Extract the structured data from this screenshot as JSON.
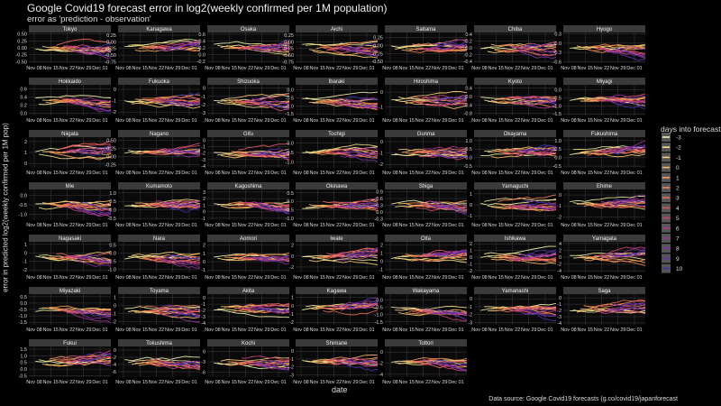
{
  "title": "Google Covid19 forecast error in log2(weekly confirmed per 1M population)",
  "subtitle": "error as 'prediction - observation'",
  "xlabel": "date",
  "ylabel": "error in predicted log2(weekly confirmed per 1M pop)",
  "source": "Data source: Google Covid19 forecasts (g.co/covid19/japanforecast",
  "x_tick_labels": [
    "Nov 08",
    "Nov 15",
    "Nov 22",
    "Nov 29",
    "Dec 01"
  ],
  "legend": {
    "title": "days into forecast",
    "levels": [
      "-3",
      "-2",
      "-1",
      "0",
      "1",
      "2",
      "3",
      "4",
      "5",
      "6",
      "7",
      "8",
      "9",
      "10"
    ],
    "colors": [
      "#f0f0a8",
      "#f6e08a",
      "#f8cc70",
      "#f9b560",
      "#f89c55",
      "#f4834f",
      "#ec6b55",
      "#de5565",
      "#cc4576",
      "#b53a88",
      "#9c3497",
      "#7f31a3",
      "#5f30aa",
      "#3d2fa8"
    ]
  },
  "chart_data": {
    "type": "line",
    "layout": "small-multiples 7 columns",
    "panels": [
      {
        "name": "Tokyo",
        "ticks": [
          "0.50",
          "0.25",
          "0.00",
          "-0.25",
          "-0.50"
        ],
        "ylim": [
          -0.55,
          0.55
        ]
      },
      {
        "name": "Kanagawa",
        "ticks": [
          "0.25",
          "0.00",
          "-0.25",
          "-0.50",
          "-0.75"
        ],
        "ylim": [
          -0.8,
          0.35
        ]
      },
      {
        "name": "Osaka",
        "ticks": [
          "0.6",
          "0.4",
          "0.2",
          "0.0",
          "-0.2"
        ],
        "ylim": [
          -0.25,
          0.65
        ]
      },
      {
        "name": "Aichi",
        "ticks": [
          "0.25",
          "0.00",
          "-0.25",
          "-0.50",
          "-0.75"
        ],
        "ylim": [
          -0.8,
          0.35
        ]
      },
      {
        "name": "Saitama",
        "ticks": [
          "0.25",
          "0.00",
          "-0.25",
          "-0.50"
        ],
        "ylim": [
          -0.55,
          0.4
        ]
      },
      {
        "name": "Chiba",
        "ticks": [
          "0.4",
          "0.2",
          "0.0",
          "-0.2",
          "-0.4"
        ],
        "ylim": [
          -0.45,
          0.45
        ]
      },
      {
        "name": "Hyogo",
        "ticks": [
          "0.3",
          "0.0",
          "-0.3",
          "-0.6"
        ],
        "ylim": [
          -0.65,
          0.35
        ]
      },
      {
        "name": "Hokkaido",
        "ticks": [
          "0.6",
          "0.4",
          "0.2",
          "0.0"
        ],
        "ylim": [
          -0.05,
          0.7
        ]
      },
      {
        "name": "Fukuoka",
        "ticks": [
          "0",
          "-1",
          "-2"
        ],
        "ylim": [
          -2.3,
          0.4
        ]
      },
      {
        "name": "Shizuoka",
        "ticks": [
          "0",
          "-1",
          "-2",
          "-3"
        ],
        "ylim": [
          -3.3,
          0.4
        ]
      },
      {
        "name": "Ibaraki",
        "ticks": [
          "0.0",
          "-0.5",
          "-1.0",
          "-1.5"
        ],
        "ylim": [
          -1.6,
          0.3
        ]
      },
      {
        "name": "Hiroshima",
        "ticks": [
          "0",
          "-1"
        ],
        "ylim": [
          -1.6,
          0.5
        ]
      },
      {
        "name": "Kyoto",
        "ticks": [
          "0.4",
          "0.0",
          "-0.4",
          "-0.8"
        ],
        "ylim": [
          -0.9,
          0.55
        ]
      },
      {
        "name": "Miyagi",
        "ticks": [
          "0.0",
          "-0.5",
          "-1.0",
          "-1.5"
        ],
        "ylim": [
          -1.6,
          0.3
        ]
      },
      {
        "name": "Niigata",
        "ticks": [
          "2",
          "1",
          "0"
        ],
        "ylim": [
          -0.4,
          2.4
        ]
      },
      {
        "name": "Nagano",
        "ticks": [
          "0.50",
          "0.25",
          "0.00",
          "-0.25"
        ],
        "ylim": [
          -0.35,
          0.6
        ]
      },
      {
        "name": "Gifu",
        "ticks": [
          "0",
          "-1",
          "-2",
          "-3",
          "-4"
        ],
        "ylim": [
          -4.3,
          0.5
        ]
      },
      {
        "name": "Tochigi",
        "ticks": [
          "0.0",
          "-0.5",
          "-1.0"
        ],
        "ylim": [
          -1.3,
          0.3
        ]
      },
      {
        "name": "Gunma",
        "ticks": [
          "0",
          "-1",
          "-2"
        ],
        "ylim": [
          -2.3,
          0.4
        ]
      },
      {
        "name": "Okayama",
        "ticks": [
          "1.0",
          "0.5",
          "0.0",
          "-0.5"
        ],
        "ylim": [
          -0.6,
          1.2
        ]
      },
      {
        "name": "Fukushima",
        "ticks": [
          "1.0",
          "0.5",
          "0.0",
          "-0.5"
        ],
        "ylim": [
          -0.6,
          1.2
        ]
      },
      {
        "name": "Mie",
        "ticks": [
          "0.0",
          "-0.5",
          "-1.0"
        ],
        "ylim": [
          -1.3,
          0.3
        ]
      },
      {
        "name": "Kumamoto",
        "ticks": [
          "1.0",
          "0.5",
          "0.0",
          "-0.5"
        ],
        "ylim": [
          -0.6,
          1.2
        ]
      },
      {
        "name": "Kagoshima",
        "ticks": [
          "3",
          "2",
          "1",
          "0",
          "-1"
        ],
        "ylim": [
          -1.3,
          3.4
        ]
      },
      {
        "name": "Okinawa",
        "ticks": [
          "0.5",
          "0.0",
          "-0.5",
          "-1.0"
        ],
        "ylim": [
          -1.1,
          0.7
        ]
      },
      {
        "name": "Shiga",
        "ticks": [
          "0.9",
          "0.6",
          "0.3",
          "0.0",
          "-0.3"
        ],
        "ylim": [
          -0.35,
          1.0
        ]
      },
      {
        "name": "Yamaguchi",
        "ticks": [
          "1",
          "0",
          "-1"
        ],
        "ylim": [
          -1.4,
          1.4
        ]
      },
      {
        "name": "Ehime",
        "ticks": [
          "0",
          "-1",
          "-2"
        ],
        "ylim": [
          -2.3,
          0.5
        ]
      },
      {
        "name": "Nagasaki",
        "ticks": [
          "1",
          "0",
          "-1",
          "-2"
        ],
        "ylim": [
          -2.3,
          1.3
        ]
      },
      {
        "name": "Nara",
        "ticks": [
          "0.5",
          "0.0",
          "-0.5",
          "-1.0"
        ],
        "ylim": [
          -1.2,
          0.7
        ]
      },
      {
        "name": "Aomori",
        "ticks": [
          "2",
          "1",
          "0",
          "-1"
        ],
        "ylim": [
          -1.3,
          2.4
        ]
      },
      {
        "name": "Iwate",
        "ticks": [
          "2",
          "0",
          "-2"
        ],
        "ylim": [
          -3.0,
          2.6
        ]
      },
      {
        "name": "Oita",
        "ticks": [
          "2",
          "1",
          "0",
          "-1"
        ],
        "ylim": [
          -1.4,
          2.4
        ]
      },
      {
        "name": "Ishikawa",
        "ticks": [
          "2",
          "1",
          "0",
          "-1",
          "-2"
        ],
        "ylim": [
          -2.3,
          2.3
        ]
      },
      {
        "name": "Yamagata",
        "ticks": [
          "4",
          "2",
          "0",
          "-2",
          "-4"
        ],
        "ylim": [
          -4.5,
          4.5
        ]
      },
      {
        "name": "Miyazaki",
        "ticks": [
          "0.5",
          "0.0",
          "-0.5",
          "-1.0",
          "-1.5"
        ],
        "ylim": [
          -1.7,
          0.7
        ]
      },
      {
        "name": "Toyama",
        "ticks": [
          "1",
          "0",
          "-1",
          "-2"
        ],
        "ylim": [
          -2.4,
          1.4
        ]
      },
      {
        "name": "Akita",
        "ticks": [
          "0",
          "-1",
          "-2",
          "-3",
          "-4"
        ],
        "ylim": [
          -4.3,
          0.6
        ]
      },
      {
        "name": "Kagawa",
        "ticks": [
          "1",
          "0",
          "-1",
          "-2"
        ],
        "ylim": [
          -2.3,
          1.4
        ]
      },
      {
        "name": "Wakayama",
        "ticks": [
          "0.0",
          "-0.5",
          "-1.0",
          "-1.5"
        ],
        "ylim": [
          -1.7,
          0.4
        ]
      },
      {
        "name": "Yamanashi",
        "ticks": [
          "0",
          "-1",
          "-2",
          "-3"
        ],
        "ylim": [
          -3.3,
          0.6
        ]
      },
      {
        "name": "Saga",
        "ticks": [
          "0",
          "-1",
          "-2",
          "-3",
          "-4"
        ],
        "ylim": [
          -4.3,
          0.6
        ]
      },
      {
        "name": "Fukui",
        "ticks": [
          "1.5",
          "1.0",
          "0.5",
          "0.0",
          "-0.5"
        ],
        "ylim": [
          -0.6,
          1.7
        ]
      },
      {
        "name": "Tokushima",
        "ticks": [
          "0",
          "-2",
          "-4",
          "-6"
        ],
        "ylim": [
          -7.5,
          1.0
        ]
      },
      {
        "name": "Kochi",
        "ticks": [
          "0",
          "-3",
          "-6"
        ],
        "ylim": [
          -7.5,
          1.5
        ]
      },
      {
        "name": "Shimane",
        "ticks": [
          "0",
          "-1",
          "-2",
          "-3"
        ],
        "ylim": [
          -3.3,
          0.6
        ]
      },
      {
        "name": "Tottori",
        "ticks": [
          "0",
          "-2",
          "-4"
        ],
        "ylim": [
          -4.5,
          1.0
        ]
      }
    ]
  }
}
